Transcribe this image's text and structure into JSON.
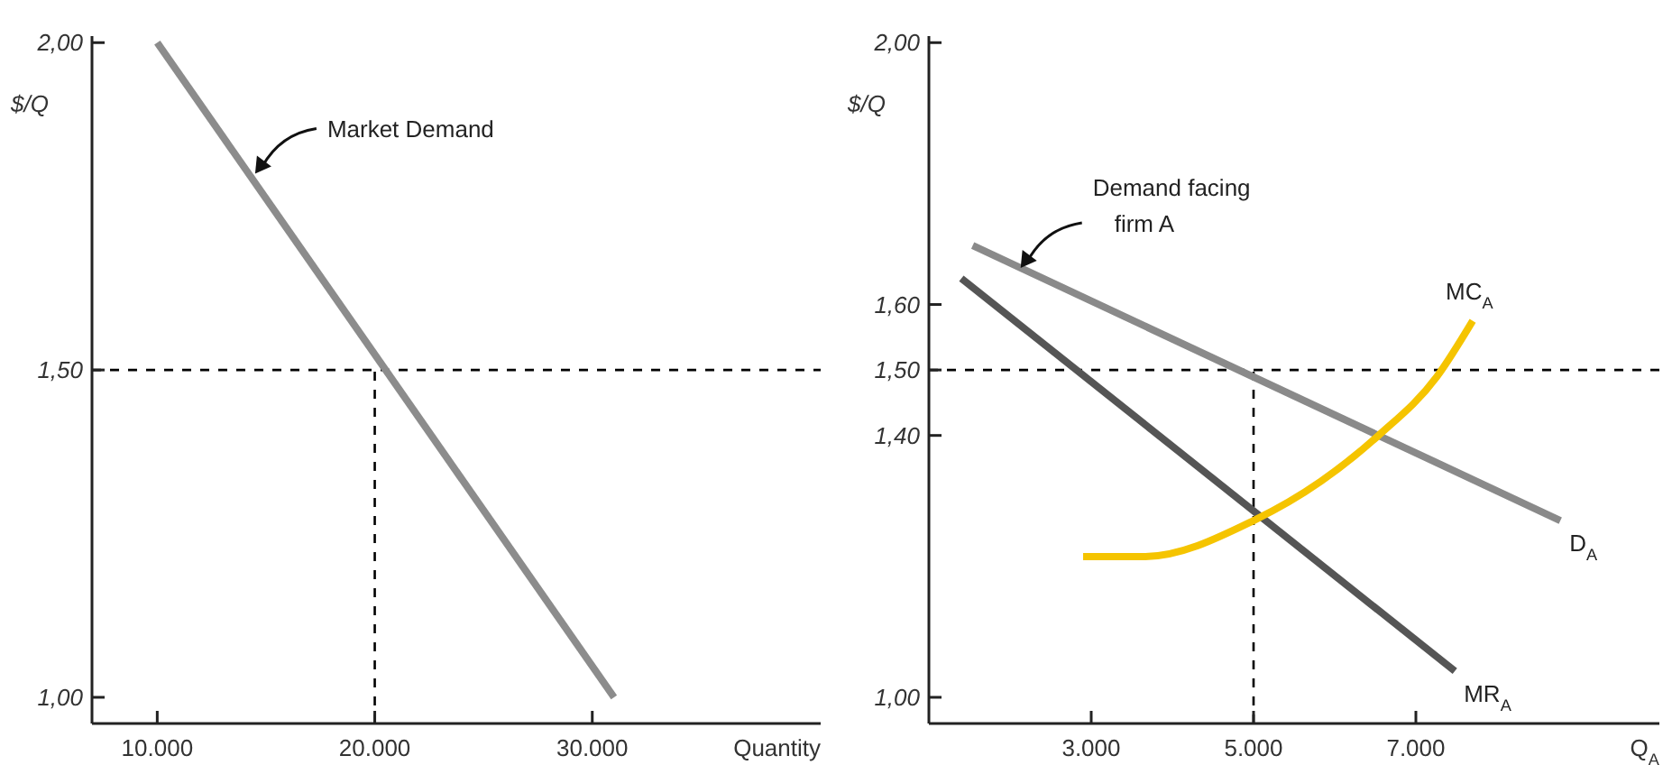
{
  "chart_data": [
    {
      "type": "line",
      "ylabel": "$/Q",
      "xlabel": "Quantity",
      "xlim": [
        7000,
        40500
      ],
      "ylim": [
        0.96,
        2.01
      ],
      "xticks": [
        {
          "value": 10000,
          "label": "10.000"
        },
        {
          "value": 20000,
          "label": "20.000"
        },
        {
          "value": 30000,
          "label": "30.000"
        }
      ],
      "yticks": [
        {
          "value": 1,
          "label": "1,00"
        },
        {
          "value": 1.5,
          "label": "1,50"
        },
        {
          "value": 2,
          "label": "2,00"
        }
      ],
      "series": [
        {
          "color": "#8c8c8c",
          "x": [
            10000,
            31000
          ],
          "values": [
            2.0,
            1.0
          ]
        }
      ],
      "ref_lines": [
        {
          "axis": "y",
          "value": 1.5,
          "line_style": "dashed"
        },
        {
          "axis": "x",
          "value": 20000,
          "line_style": "dashed"
        }
      ],
      "annotations": [
        {
          "text": "Market Demand",
          "x": 14500,
          "y": 1.8
        }
      ],
      "grid": false,
      "marker": "none"
    },
    {
      "type": "line",
      "ylabel": "$/Q",
      "xlabel": "Q$_{A}$",
      "xlim": [
        1000,
        10000
      ],
      "ylim": [
        0.96,
        2.01
      ],
      "xticks": [
        {
          "value": 3000,
          "label": "3.000"
        },
        {
          "value": 5000,
          "label": "5.000"
        },
        {
          "value": 7000,
          "label": "7.000"
        }
      ],
      "yticks": [
        {
          "value": 1,
          "label": "1,00"
        },
        {
          "value": 1.4,
          "label": "1,40"
        },
        {
          "value": 1.5,
          "label": "1,50"
        },
        {
          "value": 1.6,
          "label": "1,60"
        },
        {
          "value": 2,
          "label": "2,00"
        }
      ],
      "series": [
        {
          "name": "D$_{A}$",
          "color": "#8a8a8a",
          "x": [
            1540,
            8780
          ],
          "values": [
            1.69,
            1.27
          ]
        },
        {
          "name": "MR$_{A}$",
          "color": "#555555",
          "x": [
            1400,
            7480
          ],
          "values": [
            1.64,
            1.04
          ]
        },
        {
          "name": "MC$_{A}$",
          "color": "#f5c400",
          "x": [
            2900,
            3650,
            5000,
            5830,
            6540,
            7260,
            7700
          ],
          "values": [
            1.215,
            1.215,
            1.27,
            1.33,
            1.4,
            1.49,
            1.575
          ]
        }
      ],
      "ref_lines": [
        {
          "axis": "y",
          "value": 1.5,
          "line_style": "dashed"
        },
        {
          "axis": "x",
          "value": 5000,
          "line_style": "dashed"
        }
      ],
      "annotations": [
        {
          "text": "Demand facing firm A",
          "x": 2130,
          "y": 1.656
        }
      ],
      "grid": false,
      "marker": "none"
    }
  ]
}
